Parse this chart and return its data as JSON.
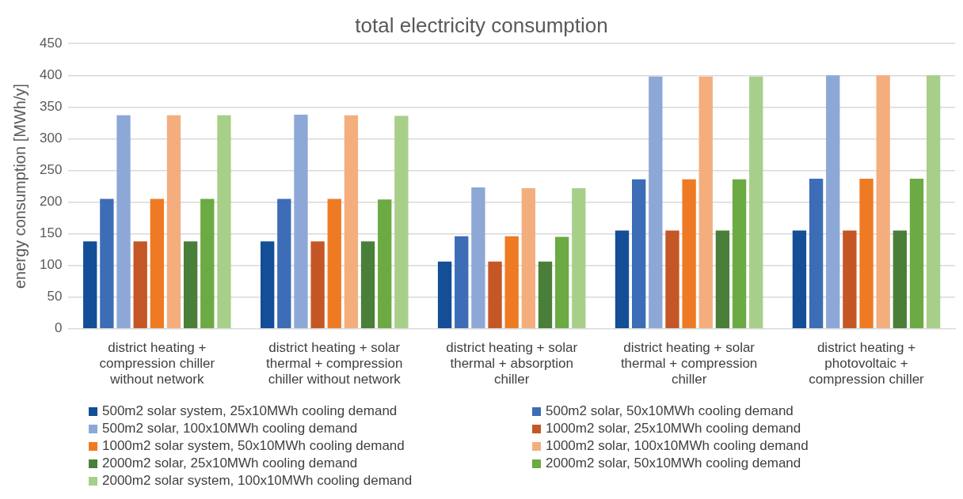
{
  "chart_data": {
    "type": "bar",
    "title": "total electricity consumption",
    "ylabel": "energy consumption [MWh/y]",
    "categories": [
      "district heating + compression chiller without network",
      "district heating + solar thermal + compression chiller without network",
      "district heating + solar thermal + absorption chiller",
      "district heating + solar thermal + compression chiller",
      "district heating + photovoltaic + compression chiller"
    ],
    "series": [
      {
        "name": "500m2 solar system, 25x10MWh cooling demand",
        "color": "#134e96",
        "values": [
          138,
          138,
          106,
          155,
          155
        ]
      },
      {
        "name": "500m2 solar, 50x10MWh cooling demand",
        "color": "#3c6db6",
        "values": [
          205,
          205,
          146,
          236,
          237
        ]
      },
      {
        "name": "500m2 solar, 100x10MWh cooling demand",
        "color": "#8da8d6",
        "values": [
          337,
          338,
          223,
          398,
          400
        ]
      },
      {
        "name": "1000m2 solar, 25x10MWh cooling demand",
        "color": "#c55726",
        "values": [
          138,
          138,
          106,
          155,
          155
        ]
      },
      {
        "name": "1000m2 solar system, 50x10MWh cooling demand",
        "color": "#ee7b24",
        "values": [
          205,
          205,
          146,
          236,
          237
        ]
      },
      {
        "name": "1000m2 solar, 100x10MWh cooling demand",
        "color": "#f4ae7e",
        "values": [
          337,
          337,
          222,
          398,
          400
        ]
      },
      {
        "name": "2000m2 solar, 25x10MWh cooling demand",
        "color": "#4a7f39",
        "values": [
          138,
          138,
          106,
          155,
          155
        ]
      },
      {
        "name": "2000m2 solar, 50x10MWh cooling demand",
        "color": "#6caa43",
        "values": [
          205,
          204,
          145,
          236,
          237
        ]
      },
      {
        "name": "2000m2 solar system, 100x10MWh cooling demand",
        "color": "#a8cf8a",
        "values": [
          337,
          336,
          222,
          398,
          400
        ]
      }
    ],
    "ylim": [
      0,
      450
    ],
    "yticks": [
      0,
      50,
      100,
      150,
      200,
      250,
      300,
      350,
      400,
      450
    ],
    "grid": "y",
    "legend": "bottom"
  }
}
